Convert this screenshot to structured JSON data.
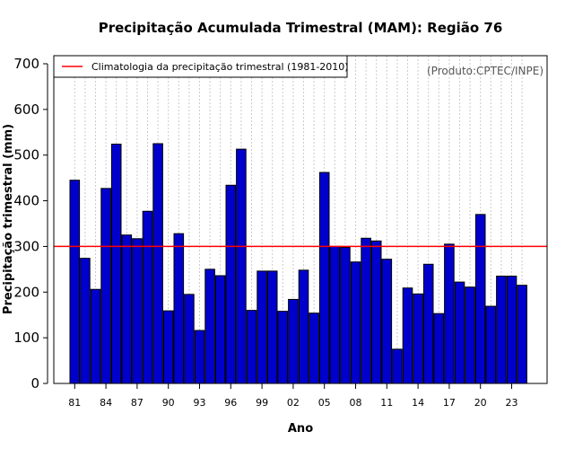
{
  "chart_data": {
    "type": "bar",
    "title": "Precipitação Acumulada Trimestral (MAM): Região 76",
    "xlabel": "Ano",
    "ylabel": "Precipitação trimestral (mm)",
    "credit": "(Produto:CPTEC/INPE)",
    "ylim": [
      0,
      700
    ],
    "y_ticks": [
      0,
      100,
      200,
      300,
      400,
      500,
      600,
      700
    ],
    "x_tick_labels": [
      "81",
      "84",
      "87",
      "90",
      "93",
      "96",
      "99",
      "02",
      "05",
      "08",
      "11",
      "14",
      "17",
      "20",
      "23"
    ],
    "grid": true,
    "bar_color": "#0000cd",
    "line_color": "#ff0000",
    "reference_line": {
      "label": "Climatologia da precipitação trimestral (1981-2010)",
      "value": 300
    },
    "legend_position": "top-left",
    "categories": [
      "1981",
      "1982",
      "1983",
      "1984",
      "1985",
      "1986",
      "1987",
      "1988",
      "1989",
      "1990",
      "1991",
      "1992",
      "1993",
      "1994",
      "1995",
      "1996",
      "1997",
      "1998",
      "1999",
      "2000",
      "2001",
      "2002",
      "2003",
      "2004",
      "2005",
      "2006",
      "2007",
      "2008",
      "2009",
      "2010",
      "2011",
      "2012",
      "2013",
      "2014",
      "2015",
      "2016",
      "2017",
      "2018",
      "2019",
      "2020",
      "2021",
      "2022",
      "2023",
      "2024"
    ],
    "values": [
      445,
      274,
      206,
      427,
      524,
      325,
      317,
      377,
      525,
      159,
      328,
      195,
      116,
      250,
      236,
      434,
      513,
      160,
      246,
      246,
      158,
      184,
      248,
      154,
      462,
      300,
      298,
      266,
      318,
      312,
      272,
      75,
      209,
      196,
      261,
      153,
      305,
      222,
      211,
      370,
      169,
      235,
      235,
      215
    ]
  }
}
